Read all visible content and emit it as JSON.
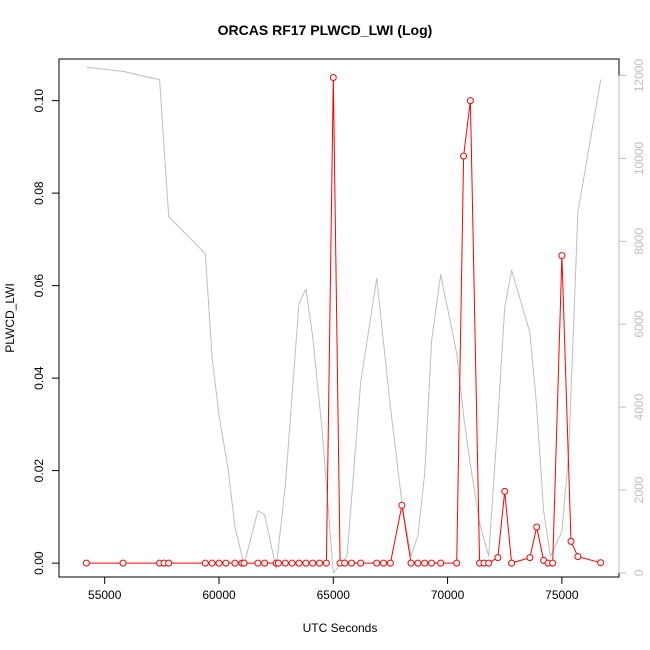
{
  "chart_data": {
    "type": "line",
    "title": "ORCAS RF17 PLWCD_LWI (Log)",
    "xlabel": "UTC Seconds",
    "ylabel": "PLWCD_LWI",
    "y2label": "",
    "xlim": [
      53000,
      77500
    ],
    "ylim": [
      -0.003,
      0.109
    ],
    "y2lim": [
      -100,
      12400
    ],
    "x_ticks": [
      55000,
      60000,
      65000,
      70000,
      75000
    ],
    "x_tick_labels": [
      "55000",
      "60000",
      "65000",
      "70000",
      "75000"
    ],
    "y_ticks": [
      0.0,
      0.02,
      0.04,
      0.06,
      0.08,
      0.1
    ],
    "y_tick_labels": [
      "0.00",
      "0.02",
      "0.04",
      "0.06",
      "0.08",
      "0.10"
    ],
    "y2_ticks": [
      0,
      2000,
      4000,
      6000,
      8000,
      10000,
      12000
    ],
    "y2_tick_labels": [
      "0",
      "2000",
      "4000",
      "6000",
      "8000",
      "10000",
      "12000"
    ],
    "grid": false,
    "legend": "none",
    "colors": {
      "primary": "#ff0000",
      "secondary": "#bebebe",
      "axis": "#000000"
    },
    "series": [
      {
        "axis": "left",
        "style": "line-with-open-circles",
        "color": "#ff0000",
        "x": [
          54200,
          55800,
          57400,
          57600,
          57800,
          59400,
          59700,
          60000,
          60300,
          60700,
          61000,
          61100,
          61700,
          62000,
          62500,
          62600,
          62900,
          63200,
          63500,
          63800,
          64100,
          64400,
          64700,
          65000,
          65300,
          65500,
          65800,
          66200,
          66900,
          67200,
          67500,
          68000,
          68400,
          68700,
          69000,
          69300,
          69700,
          70400,
          70700,
          71000,
          71400,
          71600,
          71800,
          72200,
          72500,
          72800,
          73600,
          73900,
          74200,
          74400,
          74600,
          75000,
          75400,
          75700,
          76700
        ],
        "y": [
          0.0,
          0.0,
          0.0,
          0.0,
          0.0,
          0.0,
          0.0,
          0.0,
          0.0,
          0.0,
          0.0,
          0.0,
          0.0,
          0.0,
          0.0,
          0.0,
          0.0,
          0.0,
          0.0,
          0.0,
          0.0,
          0.0,
          0.0,
          0.105,
          0.0,
          0.0,
          0.0,
          0.0,
          0.0,
          0.0,
          0.0,
          0.0125,
          0.0,
          0.0,
          0.0,
          0.0,
          0.0,
          0.0,
          0.088,
          0.1,
          0.0,
          0.0,
          0.0,
          0.0012,
          0.0155,
          0.0,
          0.0012,
          0.0078,
          0.0006,
          0.0,
          0.0,
          0.0665,
          0.0047,
          0.0014,
          0.0001
        ]
      },
      {
        "axis": "right",
        "style": "line",
        "color": "#bebebe",
        "x": [
          54200,
          55800,
          57400,
          57800,
          59400,
          59700,
          60000,
          60400,
          60700,
          61100,
          61700,
          62000,
          62500,
          62900,
          63500,
          63800,
          64100,
          64500,
          65000,
          65300,
          65600,
          66200,
          66900,
          67500,
          68000,
          68400,
          68700,
          69000,
          69300,
          69700,
          70400,
          70700,
          71000,
          71400,
          71800,
          72200,
          72500,
          72800,
          73600,
          73900,
          74200,
          74500,
          75000,
          75300,
          75700,
          76700
        ],
        "y": [
          12200,
          12100,
          11900,
          8600,
          7700,
          5200,
          3800,
          2500,
          1100,
          200,
          1500,
          1400,
          100,
          2100,
          6500,
          6850,
          5700,
          3500,
          0,
          200,
          400,
          4600,
          7100,
          4000,
          1700,
          400,
          900,
          2400,
          5600,
          7200,
          5300,
          3800,
          2600,
          1200,
          400,
          3700,
          6400,
          7300,
          5800,
          4000,
          1500,
          400,
          1000,
          2900,
          8700,
          11900
        ]
      }
    ]
  }
}
